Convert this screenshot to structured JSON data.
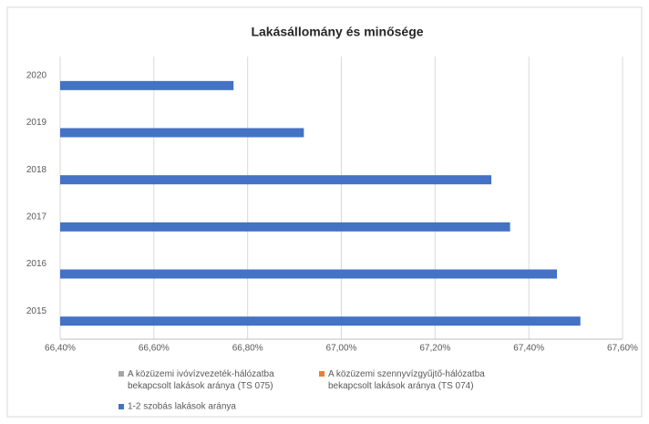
{
  "chart_data": {
    "type": "bar",
    "orientation": "horizontal",
    "title": "Lakásállomány és minősége",
    "categories": [
      "2015",
      "2016",
      "2017",
      "2018",
      "2019",
      "2020"
    ],
    "series": [
      {
        "name": "A közüzemi ivóvízvezeték-hálózatba bekapcsolt lakások aránya (TS 075)",
        "color": "#a5a5a5",
        "values": [
          null,
          null,
          null,
          null,
          null,
          null
        ]
      },
      {
        "name": "A közüzemi szennyvízgyűjtő-hálózatba bekapcsolt lakások aránya (TS 074)",
        "color": "#ed7d31",
        "values": [
          null,
          null,
          null,
          null,
          null,
          null
        ]
      },
      {
        "name": "1-2 szobás lakások aránya",
        "color": "#4472c4",
        "values": [
          67.51,
          67.46,
          67.36,
          67.32,
          66.92,
          66.77
        ]
      }
    ],
    "xlim": [
      66.4,
      67.6
    ],
    "xticks": [
      {
        "value": 66.4,
        "label": "66,40%"
      },
      {
        "value": 66.6,
        "label": "66,60%"
      },
      {
        "value": 66.8,
        "label": "66,80%"
      },
      {
        "value": 67.0,
        "label": "67,00%"
      },
      {
        "value": 67.2,
        "label": "67,20%"
      },
      {
        "value": 67.4,
        "label": "67,40%"
      },
      {
        "value": 67.6,
        "label": "67,60%"
      }
    ],
    "grid": true,
    "legend": "bottom"
  }
}
